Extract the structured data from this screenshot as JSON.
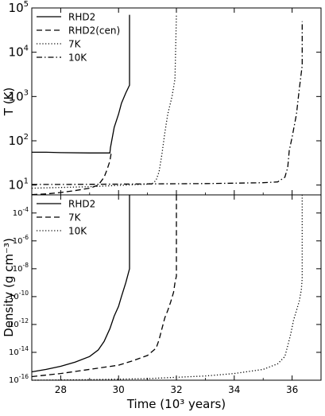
{
  "x_label": "Time (10³  years)",
  "chart_data": [
    {
      "type": "line",
      "ylabel": "T (K)",
      "yscale": "log",
      "xlim": [
        27,
        37
      ],
      "ylim": [
        6,
        100000
      ],
      "x_ticks": [
        28,
        30,
        32,
        34,
        36
      ],
      "y_ticks": [
        {
          "value": 10,
          "base": "10",
          "exp": "1"
        },
        {
          "value": 100,
          "base": "10",
          "exp": "2"
        },
        {
          "value": 1000,
          "base": "10",
          "exp": "3"
        },
        {
          "value": 10000,
          "base": "10",
          "exp": "4"
        },
        {
          "value": 100000,
          "base": "10",
          "exp": "5"
        }
      ],
      "legend_position": "top-left",
      "series": [
        {
          "name": "RHD2",
          "style": "solid",
          "points": [
            [
              27,
              55
            ],
            [
              27.5,
              55
            ],
            [
              28,
              54
            ],
            [
              29,
              53
            ],
            [
              29.7,
              53
            ],
            [
              29.72,
              70
            ],
            [
              29.85,
              200
            ],
            [
              30,
              400
            ],
            [
              30.1,
              700
            ],
            [
              30.25,
              1200
            ],
            [
              30.38,
              1800
            ],
            [
              30.38,
              70000
            ]
          ]
        },
        {
          "name": "RHD2(cen)",
          "style": "dashed",
          "points": [
            [
              27,
              6.1
            ],
            [
              27.5,
              6.3
            ],
            [
              28,
              6.8
            ],
            [
              28.5,
              7.5
            ],
            [
              29,
              8.5
            ],
            [
              29.3,
              10
            ],
            [
              29.5,
              15
            ],
            [
              29.6,
              22
            ],
            [
              29.7,
              35
            ],
            [
              29.75,
              55
            ]
          ]
        },
        {
          "name": "7K",
          "style": "dotted",
          "points": [
            [
              27,
              8.5
            ],
            [
              28,
              8.8
            ],
            [
              29,
              9.2
            ],
            [
              30,
              9.8
            ],
            [
              31,
              10.5
            ],
            [
              31.2,
              11
            ],
            [
              31.3,
              13
            ],
            [
              31.4,
              20
            ],
            [
              31.5,
              50
            ],
            [
              31.6,
              150
            ],
            [
              31.7,
              400
            ],
            [
              31.85,
              1000
            ],
            [
              31.95,
              2500
            ],
            [
              32,
              70000
            ]
          ]
        },
        {
          "name": "10K",
          "style": "dashdot",
          "points": [
            [
              27,
              10.3
            ],
            [
              28,
              10.3
            ],
            [
              29,
              10.4
            ],
            [
              30,
              10.5
            ],
            [
              31,
              10.6
            ],
            [
              32,
              10.7
            ],
            [
              33,
              10.8
            ],
            [
              34,
              11
            ],
            [
              35,
              11.3
            ],
            [
              35.5,
              11.8
            ],
            [
              35.75,
              15
            ],
            [
              35.85,
              25
            ],
            [
              35.9,
              60
            ],
            [
              36,
              120
            ],
            [
              36.15,
              400
            ],
            [
              36.25,
              1500
            ],
            [
              36.35,
              5000
            ],
            [
              36.35,
              50000
            ]
          ]
        }
      ]
    },
    {
      "type": "line",
      "ylabel": "Density (g cm⁻³)",
      "yscale": "log",
      "xlim": [
        27,
        37
      ],
      "ylim": [
        1e-16,
        0.002
      ],
      "x_ticks": [
        28,
        30,
        32,
        34,
        36
      ],
      "y_ticks": [
        {
          "value": 1e-16,
          "base": "10",
          "exp": "-16"
        },
        {
          "value": 1e-14,
          "base": "10",
          "exp": "-14"
        },
        {
          "value": 1e-12,
          "base": "10",
          "exp": "-12"
        },
        {
          "value": 1e-10,
          "base": "10",
          "exp": "-10"
        },
        {
          "value": 1e-08,
          "base": "10",
          "exp": "-8"
        },
        {
          "value": 1e-06,
          "base": "10",
          "exp": "-6"
        },
        {
          "value": 0.0001,
          "base": "10",
          "exp": "-4"
        }
      ],
      "legend_position": "top-left",
      "series": [
        {
          "name": "RHD2",
          "style": "solid",
          "points": [
            [
              27,
              4e-16
            ],
            [
              27.5,
              6e-16
            ],
            [
              28,
              1e-15
            ],
            [
              28.5,
              2e-15
            ],
            [
              29,
              5e-15
            ],
            [
              29.3,
              1.5e-14
            ],
            [
              29.5,
              6e-14
            ],
            [
              29.7,
              5e-13
            ],
            [
              29.85,
              4e-12
            ],
            [
              30,
              2e-11
            ],
            [
              30.1,
              1e-10
            ],
            [
              30.25,
              1e-09
            ],
            [
              30.38,
              1e-08
            ],
            [
              30.38,
              0.002
            ]
          ]
        },
        {
          "name": "7K",
          "style": "dashed",
          "points": [
            [
              27,
              1.8e-16
            ],
            [
              28,
              3e-16
            ],
            [
              29,
              6e-16
            ],
            [
              30,
              1.2e-15
            ],
            [
              30.5,
              2.5e-15
            ],
            [
              31,
              6e-15
            ],
            [
              31.3,
              2e-14
            ],
            [
              31.4,
              8e-14
            ],
            [
              31.5,
              5e-13
            ],
            [
              31.6,
              3e-12
            ],
            [
              31.7,
              1e-11
            ],
            [
              31.8,
              4e-11
            ],
            [
              31.9,
              2e-10
            ],
            [
              31.95,
              1e-09
            ],
            [
              32,
              3e-09
            ],
            [
              32,
              0.002
            ]
          ]
        },
        {
          "name": "10K",
          "style": "dotted",
          "points": [
            [
              27,
              1e-16
            ],
            [
              29,
              1.1e-16
            ],
            [
              31,
              1.3e-16
            ],
            [
              33,
              2e-16
            ],
            [
              34,
              3e-16
            ],
            [
              35,
              6e-16
            ],
            [
              35.5,
              1.5e-15
            ],
            [
              35.75,
              5e-15
            ],
            [
              35.85,
              3e-14
            ],
            [
              35.95,
              2e-13
            ],
            [
              36.05,
              2e-12
            ],
            [
              36.15,
              1e-11
            ],
            [
              36.25,
              5e-11
            ],
            [
              36.32,
              3e-10
            ],
            [
              36.35,
              2e-09
            ],
            [
              36.35,
              0.002
            ]
          ]
        }
      ]
    }
  ]
}
